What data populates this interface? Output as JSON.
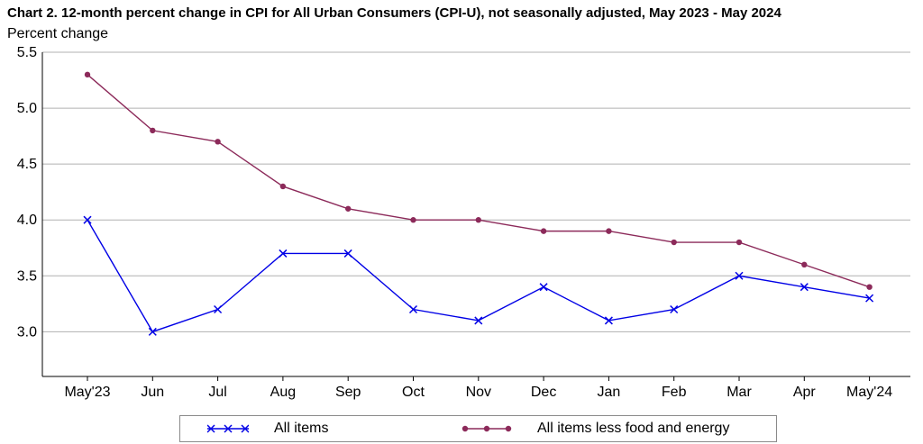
{
  "chart_data": {
    "type": "line",
    "title": "Chart 2. 12-month percent change in CPI for All Urban Consumers (CPI-U), not seasonally adjusted, May 2023 - May 2024",
    "ylabel": "Percent change",
    "xlabel": "",
    "ylim": [
      2.6,
      5.5
    ],
    "yticks": [
      "5.5",
      "5.0",
      "4.5",
      "4.0",
      "3.5",
      "3.0"
    ],
    "ytick_values": [
      5.5,
      5.0,
      4.5,
      4.0,
      3.5,
      3.0
    ],
    "grid": "horizontal",
    "legend_position": "bottom",
    "categories": [
      "May'23",
      "Jun",
      "Jul",
      "Aug",
      "Sep",
      "Oct",
      "Nov",
      "Dec",
      "Jan",
      "Feb",
      "Mar",
      "Apr",
      "May'24"
    ],
    "series": [
      {
        "name": "All items",
        "color": "#0000e6",
        "marker": "x",
        "values": [
          4.0,
          3.0,
          3.2,
          3.7,
          3.7,
          3.2,
          3.1,
          3.4,
          3.1,
          3.2,
          3.5,
          3.4,
          3.3
        ]
      },
      {
        "name": "All items less food and energy",
        "color": "#8c2a5a",
        "marker": "circle",
        "values": [
          5.3,
          4.8,
          4.7,
          4.3,
          4.1,
          4.0,
          4.0,
          3.9,
          3.9,
          3.8,
          3.8,
          3.6,
          3.4
        ]
      }
    ]
  }
}
